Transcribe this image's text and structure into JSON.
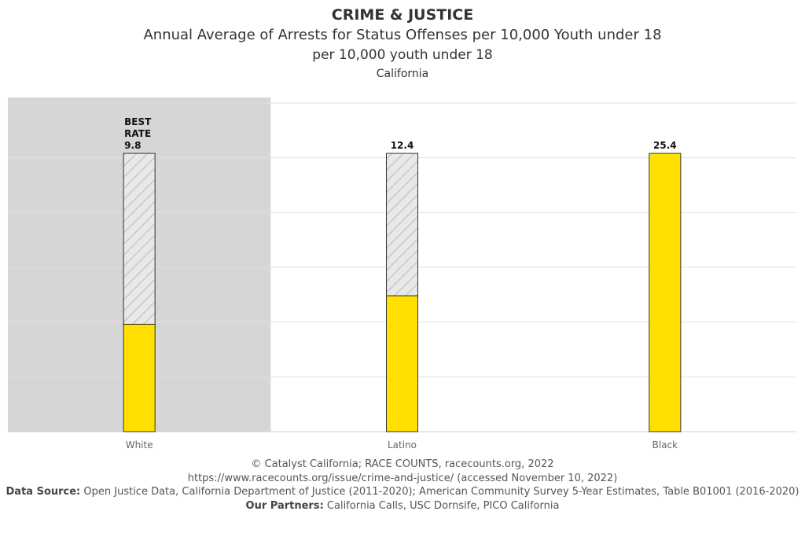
{
  "chart_data": {
    "type": "bar",
    "title": "CRIME & JUSTICE",
    "subtitles": [
      "Annual Average of Arrests for Status Offenses per 10,000 Youth under 18",
      "per 10,000 youth under 18",
      "California"
    ],
    "categories": [
      "White",
      "Latino",
      "Black"
    ],
    "values": [
      9.8,
      12.4,
      25.4
    ],
    "data_labels": [
      "BEST RATE 9.8",
      "12.4",
      "25.4"
    ],
    "best_category": "White",
    "ylim": [
      0,
      30
    ],
    "grid": true,
    "y_tick_labels_shown": false,
    "colors": {
      "bar": "#FFE000",
      "hatch_background": "#E8E8E8",
      "best_highlight": "#D6D6D6",
      "grid": "#E0E0E0"
    }
  },
  "footer": {
    "copyright": "© Catalyst California; RACE COUNTS, racecounts.org, 2022",
    "url": "https://www.racecounts.org/issue/crime-and-justice/ (accessed November 10, 2022)",
    "data_source_label": "Data Source:",
    "data_source": " Open Justice Data, California Department of Justice (2011-2020); American Community Survey 5-Year Estimates, Table B01001 (2016-2020)",
    "partners_label": "Our Partners:",
    "partners": " California Calls, USC Dornsife, PICO California"
  }
}
